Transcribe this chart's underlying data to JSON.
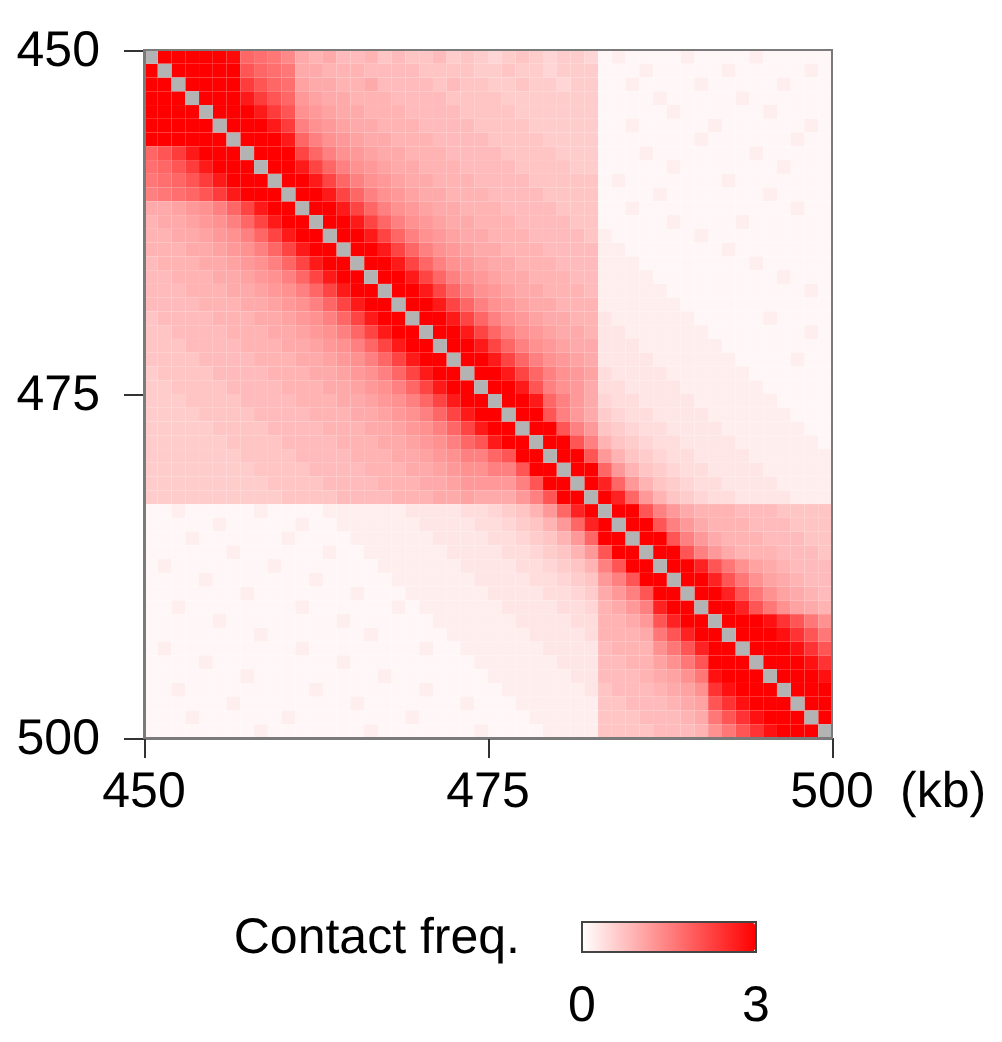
{
  "chart_data": {
    "type": "heatmap",
    "xlabel": "(kb)",
    "clabel": "Contact freq.",
    "x": [
      450.5,
      451.5,
      452.5,
      453.5,
      454.5,
      455.5,
      456.5,
      457.5,
      458.5,
      459.5,
      460.5,
      461.5,
      462.5,
      463.5,
      464.5,
      465.5,
      466.5,
      467.5,
      468.5,
      469.5,
      470.5,
      471.5,
      472.5,
      473.5,
      474.5,
      475.5,
      476.5,
      477.5,
      478.5,
      479.5,
      480.5,
      481.5,
      482.5,
      483.5,
      484.5,
      485.5,
      486.5,
      487.5,
      488.5,
      489.5,
      490.5,
      491.5,
      492.5,
      493.5,
      494.5,
      495.5,
      496.5,
      497.5,
      498.5,
      499.5
    ],
    "xlim": [
      450,
      500
    ],
    "xticks": [
      450,
      475,
      500
    ],
    "ylim": [
      500,
      450
    ],
    "yticks": [
      450,
      475,
      500
    ],
    "clim": [
      0,
      3
    ],
    "cticks": [
      0,
      3
    ],
    "cells": [
      [
        null,
        3,
        3,
        3,
        3,
        3,
        2.9,
        1.8,
        1.7,
        1.6,
        1.4,
        1.0,
        0.9,
        1.0,
        0.8,
        0.8,
        0.9,
        0.7,
        0.8,
        0.7,
        0.7,
        0.8,
        0.6,
        0.7,
        0.6,
        0.5,
        0.6,
        0.7,
        0.6,
        0.5,
        0.6,
        0.6,
        0.5,
        0.1,
        0.2,
        0.1,
        0.1,
        0.1,
        0.1,
        0.2,
        0.1,
        0.1,
        0.1,
        0.1,
        0.2,
        0.1,
        0.1,
        0.1,
        0.1,
        0.1
      ],
      [
        3,
        null,
        3,
        3,
        3,
        3,
        3,
        2.0,
        1.8,
        1.7,
        1.6,
        1.0,
        1.0,
        0.9,
        0.9,
        0.9,
        0.8,
        0.8,
        0.8,
        0.8,
        0.7,
        0.7,
        0.7,
        0.7,
        0.6,
        0.6,
        0.7,
        0.6,
        0.6,
        0.5,
        0.6,
        0.6,
        0.6,
        0.1,
        0.1,
        0.1,
        0.2,
        0.1,
        0.1,
        0.1,
        0.1,
        0.1,
        0.2,
        0.1,
        0.1,
        0.1,
        0.1,
        0.1,
        0.2,
        0.1
      ],
      [
        3,
        3,
        null,
        3,
        3,
        3,
        3,
        2.3,
        2.0,
        1.8,
        1.7,
        1.1,
        1.0,
        1.0,
        0.9,
        0.9,
        1.0,
        0.8,
        0.8,
        0.8,
        0.8,
        0.7,
        0.8,
        0.7,
        0.7,
        0.6,
        0.6,
        0.7,
        0.6,
        0.6,
        0.5,
        0.6,
        0.6,
        0.1,
        0.1,
        0.2,
        0.1,
        0.1,
        0.1,
        0.1,
        0.2,
        0.1,
        0.1,
        0.1,
        0.1,
        0.1,
        0.2,
        0.1,
        0.1,
        0.1
      ],
      [
        3,
        3,
        3,
        null,
        3,
        3,
        3,
        2.7,
        2.3,
        2.0,
        1.8,
        1.2,
        1.1,
        1.0,
        1.0,
        0.9,
        0.9,
        0.9,
        0.8,
        0.8,
        0.8,
        0.8,
        0.7,
        0.7,
        0.7,
        0.7,
        0.6,
        0.6,
        0.6,
        0.6,
        0.6,
        0.6,
        0.6,
        0.1,
        0.1,
        0.1,
        0.1,
        0.2,
        0.1,
        0.1,
        0.1,
        0.1,
        0.1,
        0.2,
        0.1,
        0.1,
        0.1,
        0.1,
        0.1,
        0.1
      ],
      [
        3,
        3,
        3,
        3,
        null,
        3,
        3,
        3,
        2.7,
        2.3,
        2.0,
        1.3,
        1.2,
        1.1,
        1.0,
        1.0,
        0.9,
        0.9,
        0.9,
        0.8,
        0.8,
        0.8,
        0.8,
        0.7,
        0.7,
        0.7,
        0.7,
        0.6,
        0.6,
        0.6,
        0.6,
        0.6,
        0.6,
        0.1,
        0.1,
        0.1,
        0.1,
        0.1,
        0.2,
        0.1,
        0.1,
        0.1,
        0.1,
        0.1,
        0.1,
        0.2,
        0.1,
        0.1,
        0.1,
        0.1
      ],
      [
        3,
        3,
        3,
        3,
        3,
        null,
        3,
        3,
        3,
        2.7,
        2.3,
        1.5,
        1.3,
        1.2,
        1.1,
        1.0,
        1.0,
        0.9,
        0.9,
        0.9,
        0.8,
        0.8,
        0.8,
        0.8,
        0.7,
        0.7,
        0.7,
        0.7,
        0.6,
        0.6,
        0.6,
        0.6,
        0.6,
        0.1,
        0.1,
        0.2,
        0.1,
        0.1,
        0.1,
        0.1,
        0.1,
        0.2,
        0.1,
        0.1,
        0.1,
        0.1,
        0.1,
        0.1,
        0.2,
        0.1
      ],
      [
        3,
        3,
        3,
        3,
        3,
        3,
        null,
        3,
        3,
        3,
        2.7,
        1.8,
        1.5,
        1.3,
        1.2,
        1.1,
        1.0,
        1.0,
        0.9,
        0.9,
        0.9,
        0.8,
        0.8,
        0.8,
        0.8,
        0.7,
        0.7,
        0.7,
        0.7,
        0.6,
        0.6,
        0.6,
        0.6,
        0.1,
        0.1,
        0.1,
        0.1,
        0.1,
        0.1,
        0.1,
        0.2,
        0.1,
        0.1,
        0.1,
        0.1,
        0.1,
        0.1,
        0.2,
        0.1,
        0.1
      ],
      [
        1.8,
        2.0,
        2.3,
        2.7,
        3,
        3,
        3,
        null,
        3,
        3,
        3,
        2.2,
        1.8,
        1.5,
        1.3,
        1.2,
        1.1,
        1.0,
        1.0,
        0.9,
        0.9,
        0.9,
        0.8,
        0.8,
        0.8,
        0.8,
        0.7,
        0.7,
        0.7,
        0.7,
        0.6,
        0.6,
        0.6,
        0.1,
        0.1,
        0.1,
        0.2,
        0.1,
        0.1,
        0.1,
        0.1,
        0.1,
        0.1,
        0.1,
        0.2,
        0.1,
        0.1,
        0.1,
        0.1,
        0.1
      ],
      [
        1.7,
        1.8,
        2.0,
        2.3,
        2.7,
        3,
        3,
        3,
        null,
        3,
        3,
        2.7,
        2.2,
        1.8,
        1.5,
        1.3,
        1.2,
        1.1,
        1.0,
        1.0,
        0.9,
        0.9,
        0.9,
        0.8,
        0.8,
        0.8,
        0.8,
        0.7,
        0.7,
        0.7,
        0.7,
        0.6,
        0.6,
        0.1,
        0.1,
        0.1,
        0.1,
        0.1,
        0.2,
        0.1,
        0.1,
        0.1,
        0.1,
        0.1,
        0.1,
        0.1,
        0.2,
        0.1,
        0.1,
        0.1
      ],
      [
        1.6,
        1.7,
        1.8,
        2.0,
        2.3,
        2.7,
        3,
        3,
        3,
        null,
        3,
        3,
        2.7,
        2.2,
        1.8,
        1.5,
        1.3,
        1.2,
        1.1,
        1.0,
        1.0,
        0.9,
        0.9,
        0.9,
        0.8,
        0.8,
        0.8,
        0.8,
        0.7,
        0.7,
        0.7,
        0.7,
        0.7,
        0.1,
        0.2,
        0.1,
        0.1,
        0.1,
        0.1,
        0.1,
        0.1,
        0.1,
        0.2,
        0.1,
        0.1,
        0.1,
        0.1,
        0.1,
        0.1,
        0.1
      ],
      [
        1.5,
        1.6,
        1.7,
        1.8,
        2.0,
        2.3,
        2.7,
        3,
        3,
        3,
        null,
        3,
        3,
        2.7,
        2.2,
        1.8,
        1.5,
        1.3,
        1.2,
        1.1,
        1.0,
        1.0,
        0.9,
        0.9,
        0.9,
        0.8,
        0.8,
        0.8,
        0.8,
        0.7,
        0.7,
        0.7,
        0.7,
        0.1,
        0.1,
        0.1,
        0.1,
        0.2,
        0.1,
        0.1,
        0.1,
        0.1,
        0.1,
        0.1,
        0.1,
        0.2,
        0.1,
        0.1,
        0.1,
        0.1
      ],
      [
        1.0,
        1.0,
        1.1,
        1.2,
        1.3,
        1.5,
        1.8,
        2.2,
        2.7,
        3,
        3,
        null,
        3,
        3,
        2.7,
        2.2,
        1.8,
        1.5,
        1.3,
        1.2,
        1.1,
        1.0,
        1.0,
        0.9,
        0.9,
        0.9,
        0.8,
        0.8,
        0.8,
        0.8,
        0.7,
        0.7,
        0.7,
        0.1,
        0.1,
        0.2,
        0.1,
        0.1,
        0.1,
        0.1,
        0.1,
        0.1,
        0.1,
        0.1,
        0.1,
        0.1,
        0.1,
        0.2,
        0.1,
        0.1
      ],
      [
        0.9,
        1.0,
        1.0,
        1.1,
        1.2,
        1.3,
        1.5,
        1.8,
        2.2,
        2.7,
        3,
        3,
        null,
        3,
        3,
        2.7,
        2.2,
        1.8,
        1.5,
        1.3,
        1.2,
        1.1,
        1.0,
        1.0,
        0.9,
        0.9,
        0.9,
        0.8,
        0.8,
        0.8,
        0.8,
        0.7,
        0.7,
        0.1,
        0.1,
        0.1,
        0.1,
        0.1,
        0.2,
        0.1,
        0.1,
        0.1,
        0.1,
        0.2,
        0.1,
        0.1,
        0.1,
        0.1,
        0.1,
        0.1
      ],
      [
        0.9,
        0.9,
        1.0,
        1.0,
        1.1,
        1.2,
        1.3,
        1.5,
        1.8,
        2.2,
        2.7,
        3,
        3,
        null,
        3,
        3,
        2.7,
        2.2,
        1.8,
        1.5,
        1.3,
        1.2,
        1.1,
        1.0,
        1.0,
        0.9,
        0.9,
        0.9,
        0.8,
        0.8,
        0.8,
        0.8,
        0.7,
        0.2,
        0.1,
        0.1,
        0.1,
        0.1,
        0.1,
        0.1,
        0.2,
        0.1,
        0.1,
        0.1,
        0.1,
        0.1,
        0.1,
        0.1,
        0.1,
        0.1
      ],
      [
        0.9,
        0.9,
        0.9,
        1.0,
        1.0,
        1.1,
        1.2,
        1.3,
        1.5,
        1.8,
        2.2,
        2.7,
        3,
        3,
        null,
        3,
        3,
        2.7,
        2.2,
        1.8,
        1.5,
        1.3,
        1.2,
        1.1,
        1.0,
        1.0,
        0.9,
        0.9,
        0.9,
        0.8,
        0.8,
        0.8,
        0.8,
        0.2,
        0.2,
        0.1,
        0.1,
        0.1,
        0.1,
        0.1,
        0.1,
        0.1,
        0.2,
        0.1,
        0.1,
        0.1,
        0.1,
        0.1,
        0.1,
        0.1
      ],
      [
        0.8,
        0.9,
        0.9,
        0.9,
        1.0,
        1.0,
        1.1,
        1.2,
        1.3,
        1.5,
        1.8,
        2.2,
        2.7,
        3,
        3,
        null,
        3,
        3,
        2.7,
        2.2,
        1.8,
        1.5,
        1.3,
        1.2,
        1.1,
        1.0,
        1.0,
        0.9,
        0.9,
        0.9,
        0.8,
        0.8,
        0.8,
        0.2,
        0.2,
        0.2,
        0.1,
        0.1,
        0.1,
        0.1,
        0.1,
        0.1,
        0.1,
        0.1,
        0.2,
        0.1,
        0.1,
        0.1,
        0.1,
        0.1
      ],
      [
        0.8,
        0.8,
        0.9,
        0.9,
        0.9,
        1.0,
        1.0,
        1.1,
        1.2,
        1.3,
        1.5,
        1.8,
        2.2,
        2.7,
        3,
        3,
        null,
        3,
        3,
        2.7,
        2.2,
        1.8,
        1.5,
        1.3,
        1.2,
        1.1,
        1.0,
        1.0,
        0.9,
        0.9,
        0.9,
        0.8,
        0.8,
        0.2,
        0.2,
        0.2,
        0.2,
        0.1,
        0.1,
        0.1,
        0.1,
        0.1,
        0.1,
        0.1,
        0.1,
        0.1,
        0.2,
        0.1,
        0.1,
        0.1
      ],
      [
        0.8,
        0.8,
        0.8,
        0.9,
        0.9,
        0.9,
        1.0,
        1.0,
        1.1,
        1.2,
        1.3,
        1.5,
        1.8,
        2.2,
        2.7,
        3,
        3,
        null,
        3,
        3,
        2.7,
        2.2,
        1.8,
        1.5,
        1.3,
        1.2,
        1.1,
        1.0,
        1.0,
        0.9,
        0.9,
        0.9,
        0.8,
        0.2,
        0.2,
        0.2,
        0.2,
        0.2,
        0.1,
        0.1,
        0.1,
        0.1,
        0.1,
        0.1,
        0.1,
        0.1,
        0.1,
        0.1,
        0.2,
        0.1
      ],
      [
        0.8,
        0.8,
        0.8,
        0.8,
        0.9,
        0.9,
        0.9,
        1.0,
        1.0,
        1.1,
        1.2,
        1.3,
        1.5,
        1.8,
        2.2,
        2.7,
        3,
        3,
        null,
        3,
        3,
        2.7,
        2.2,
        1.8,
        1.5,
        1.3,
        1.2,
        1.1,
        1.0,
        1.0,
        0.9,
        0.9,
        0.9,
        0.2,
        0.2,
        0.2,
        0.2,
        0.2,
        0.2,
        0.1,
        0.1,
        0.1,
        0.1,
        0.1,
        0.1,
        0.1,
        0.1,
        0.1,
        0.1,
        0.1
      ],
      [
        0.7,
        0.8,
        0.8,
        0.8,
        0.8,
        0.9,
        0.9,
        0.9,
        1.0,
        1.0,
        1.1,
        1.2,
        1.3,
        1.5,
        1.8,
        2.2,
        2.7,
        3,
        3,
        null,
        3,
        3,
        2.7,
        2.2,
        1.8,
        1.5,
        1.3,
        1.2,
        1.1,
        1.0,
        1.0,
        0.9,
        0.9,
        0.3,
        0.2,
        0.2,
        0.2,
        0.2,
        0.2,
        0.2,
        0.1,
        0.1,
        0.1,
        0.1,
        0.1,
        0.2,
        0.1,
        0.1,
        0.1,
        0.1
      ],
      [
        0.7,
        0.7,
        0.8,
        0.8,
        0.8,
        0.8,
        0.9,
        0.9,
        0.9,
        1.0,
        1.0,
        1.1,
        1.2,
        1.3,
        1.5,
        1.8,
        2.2,
        2.7,
        3,
        3,
        null,
        3,
        3,
        2.7,
        2.2,
        1.8,
        1.5,
        1.3,
        1.2,
        1.1,
        1.0,
        1.0,
        0.9,
        0.3,
        0.3,
        0.2,
        0.2,
        0.2,
        0.2,
        0.2,
        0.2,
        0.1,
        0.1,
        0.1,
        0.1,
        0.1,
        0.1,
        0.1,
        0.2,
        0.1
      ],
      [
        0.7,
        0.7,
        0.7,
        0.8,
        0.8,
        0.8,
        0.8,
        0.9,
        0.9,
        0.9,
        1.0,
        1.0,
        1.1,
        1.2,
        1.3,
        1.5,
        1.8,
        2.2,
        2.7,
        3,
        3,
        null,
        3,
        3,
        2.7,
        2.2,
        1.8,
        1.5,
        1.3,
        1.2,
        1.1,
        1.0,
        1.0,
        0.3,
        0.3,
        0.3,
        0.2,
        0.2,
        0.2,
        0.2,
        0.2,
        0.2,
        0.1,
        0.1,
        0.1,
        0.1,
        0.1,
        0.1,
        0.1,
        0.1
      ],
      [
        0.7,
        0.7,
        0.7,
        0.7,
        0.8,
        0.8,
        0.8,
        0.8,
        0.9,
        0.9,
        0.9,
        1.0,
        1.0,
        1.1,
        1.2,
        1.3,
        1.5,
        1.8,
        2.2,
        2.7,
        3,
        3,
        null,
        3,
        3,
        2.7,
        2.2,
        1.8,
        1.5,
        1.3,
        1.2,
        1.1,
        1.0,
        0.3,
        0.3,
        0.3,
        0.3,
        0.2,
        0.2,
        0.2,
        0.2,
        0.2,
        0.2,
        0.1,
        0.1,
        0.1,
        0.1,
        0.2,
        0.1,
        0.1
      ],
      [
        0.6,
        0.7,
        0.7,
        0.7,
        0.7,
        0.8,
        0.8,
        0.8,
        0.8,
        0.9,
        0.9,
        0.9,
        1.0,
        1.0,
        1.1,
        1.2,
        1.3,
        1.5,
        1.8,
        2.2,
        2.7,
        3,
        3,
        null,
        3,
        3,
        2.7,
        2.2,
        1.8,
        1.5,
        1.3,
        1.2,
        1.1,
        0.4,
        0.3,
        0.3,
        0.3,
        0.3,
        0.2,
        0.2,
        0.2,
        0.2,
        0.2,
        0.2,
        0.1,
        0.1,
        0.1,
        0.1,
        0.1,
        0.1
      ],
      [
        0.6,
        0.6,
        0.7,
        0.7,
        0.7,
        0.7,
        0.8,
        0.8,
        0.8,
        0.8,
        0.9,
        0.9,
        0.9,
        1.0,
        1.0,
        1.1,
        1.2,
        1.3,
        1.5,
        1.8,
        2.2,
        2.7,
        3,
        3,
        null,
        3,
        3,
        2.7,
        2.0,
        1.5,
        1.3,
        1.2,
        1.0,
        0.4,
        0.4,
        0.3,
        0.3,
        0.3,
        0.3,
        0.2,
        0.2,
        0.2,
        0.2,
        0.2,
        0.2,
        0.1,
        0.1,
        0.1,
        0.1,
        0.1
      ],
      [
        0.6,
        0.6,
        0.6,
        0.7,
        0.7,
        0.7,
        0.7,
        0.8,
        0.8,
        0.8,
        0.8,
        0.9,
        0.9,
        0.9,
        1.0,
        1.0,
        1.1,
        1.2,
        1.3,
        1.5,
        1.8,
        2.2,
        2.7,
        3,
        3,
        null,
        3,
        3,
        2.7,
        1.8,
        1.5,
        1.2,
        1.0,
        0.5,
        0.4,
        0.4,
        0.3,
        0.3,
        0.3,
        0.3,
        0.2,
        0.2,
        0.2,
        0.2,
        0.2,
        0.2,
        0.1,
        0.1,
        0.1,
        0.1
      ],
      [
        0.6,
        0.6,
        0.6,
        0.6,
        0.7,
        0.7,
        0.7,
        0.7,
        0.8,
        0.8,
        0.8,
        0.8,
        0.9,
        0.9,
        0.9,
        1.0,
        1.0,
        1.1,
        1.2,
        1.3,
        1.5,
        1.8,
        2.2,
        2.7,
        3,
        3,
        null,
        3,
        3,
        2.0,
        1.5,
        1.2,
        1.0,
        0.6,
        0.5,
        0.4,
        0.4,
        0.3,
        0.3,
        0.3,
        0.3,
        0.2,
        0.2,
        0.2,
        0.2,
        0.2,
        0.2,
        0.1,
        0.1,
        0.1
      ],
      [
        0.6,
        0.6,
        0.6,
        0.6,
        0.6,
        0.7,
        0.7,
        0.7,
        0.7,
        0.8,
        0.8,
        0.8,
        0.8,
        0.9,
        0.9,
        0.9,
        1.0,
        1.0,
        1.1,
        1.2,
        1.3,
        1.5,
        1.8,
        2.2,
        2.7,
        3,
        3,
        null,
        3,
        3,
        2.0,
        1.5,
        1.2,
        0.7,
        0.6,
        0.5,
        0.4,
        0.4,
        0.3,
        0.3,
        0.3,
        0.3,
        0.2,
        0.2,
        0.2,
        0.2,
        0.2,
        0.2,
        0.1,
        0.1
      ],
      [
        0.6,
        0.6,
        0.6,
        0.6,
        0.6,
        0.6,
        0.7,
        0.7,
        0.7,
        0.7,
        0.8,
        0.8,
        0.8,
        0.8,
        0.9,
        0.9,
        0.9,
        1.0,
        1.0,
        1.1,
        1.2,
        1.3,
        1.5,
        1.8,
        2.0,
        2.7,
        3,
        3,
        null,
        3,
        3,
        2.0,
        1.5,
        0.9,
        0.7,
        0.6,
        0.5,
        0.4,
        0.4,
        0.3,
        0.3,
        0.3,
        0.3,
        0.2,
        0.2,
        0.2,
        0.2,
        0.2,
        0.2,
        0.1
      ],
      [
        0.6,
        0.6,
        0.6,
        0.6,
        0.6,
        0.6,
        0.6,
        0.7,
        0.7,
        0.7,
        0.7,
        0.8,
        0.8,
        0.8,
        0.8,
        0.9,
        0.9,
        0.9,
        1.0,
        1.0,
        1.1,
        1.2,
        1.3,
        1.5,
        1.5,
        1.8,
        2.0,
        3,
        3,
        null,
        3,
        3,
        2.0,
        1.2,
        0.9,
        0.7,
        0.6,
        0.5,
        0.4,
        0.4,
        0.3,
        0.3,
        0.3,
        0.3,
        0.2,
        0.2,
        0.2,
        0.2,
        0.2,
        0.2
      ],
      [
        0.6,
        0.6,
        0.6,
        0.6,
        0.6,
        0.6,
        0.6,
        0.6,
        0.7,
        0.7,
        0.7,
        0.7,
        0.8,
        0.8,
        0.8,
        0.8,
        0.9,
        0.9,
        0.9,
        1.0,
        1.0,
        1.1,
        1.2,
        1.3,
        1.3,
        1.5,
        1.5,
        2.0,
        3,
        3,
        null,
        3,
        3,
        1.8,
        1.2,
        0.9,
        0.7,
        0.6,
        0.5,
        0.4,
        0.4,
        0.3,
        0.3,
        0.3,
        0.3,
        0.2,
        0.2,
        0.2,
        0.2,
        0.2
      ],
      [
        0.6,
        0.6,
        0.6,
        0.6,
        0.6,
        0.6,
        0.6,
        0.6,
        0.6,
        0.7,
        0.7,
        0.7,
        0.7,
        0.8,
        0.8,
        0.8,
        0.8,
        0.9,
        0.9,
        0.9,
        1.0,
        1.0,
        1.1,
        1.2,
        1.2,
        1.2,
        1.2,
        1.5,
        2.0,
        3,
        3,
        null,
        3,
        2.6,
        1.8,
        1.2,
        0.9,
        0.7,
        0.6,
        0.5,
        0.4,
        0.4,
        0.3,
        0.3,
        0.3,
        0.3,
        0.2,
        0.2,
        0.2,
        0.2
      ],
      [
        0.6,
        0.6,
        0.6,
        0.6,
        0.6,
        0.6,
        0.6,
        0.6,
        0.6,
        0.6,
        0.7,
        0.7,
        0.7,
        0.7,
        0.8,
        0.8,
        0.8,
        0.8,
        0.9,
        0.9,
        0.9,
        1.0,
        1.0,
        1.1,
        1.0,
        1.0,
        1.0,
        1.2,
        1.5,
        2.0,
        3,
        3,
        null,
        3,
        2.6,
        1.8,
        1.2,
        0.9,
        0.7,
        0.6,
        0.5,
        0.4,
        0.4,
        0.3,
        0.3,
        0.3,
        0.3,
        0.2,
        0.2,
        0.2
      ],
      [
        0.1,
        0.1,
        0.2,
        0.1,
        0.1,
        0.1,
        0.1,
        0.1,
        0.2,
        0.1,
        0.1,
        0.1,
        0.1,
        0.2,
        0.2,
        0.2,
        0.2,
        0.2,
        0.2,
        0.3,
        0.3,
        0.3,
        0.3,
        0.4,
        0.4,
        0.5,
        0.6,
        0.7,
        0.9,
        1.2,
        1.8,
        2.6,
        3,
        null,
        3,
        3,
        2.0,
        1.5,
        1.2,
        1.0,
        0.9,
        0.9,
        0.9,
        0.8,
        0.8,
        0.8,
        0.7,
        0.7,
        0.7,
        0.7
      ],
      [
        0.1,
        0.1,
        0.1,
        0.1,
        0.1,
        0.2,
        0.1,
        0.1,
        0.1,
        0.1,
        0.1,
        0.2,
        0.1,
        0.1,
        0.2,
        0.2,
        0.2,
        0.2,
        0.2,
        0.2,
        0.3,
        0.3,
        0.3,
        0.3,
        0.4,
        0.4,
        0.5,
        0.6,
        0.7,
        0.9,
        1.2,
        1.8,
        2.6,
        3,
        null,
        3,
        3,
        2.0,
        1.5,
        1.2,
        1.0,
        0.9,
        0.9,
        0.9,
        0.8,
        0.8,
        0.8,
        0.7,
        0.7,
        0.7
      ],
      [
        0.1,
        0.1,
        0.1,
        0.2,
        0.1,
        0.1,
        0.1,
        0.1,
        0.1,
        0.1,
        0.2,
        0.1,
        0.1,
        0.1,
        0.1,
        0.2,
        0.2,
        0.2,
        0.2,
        0.2,
        0.2,
        0.3,
        0.3,
        0.3,
        0.3,
        0.4,
        0.4,
        0.5,
        0.6,
        0.7,
        0.9,
        1.2,
        1.8,
        3,
        3,
        null,
        3,
        3,
        2.0,
        1.5,
        1.2,
        1.0,
        0.9,
        0.9,
        0.9,
        0.8,
        0.8,
        0.8,
        0.7,
        0.7
      ],
      [
        0.1,
        0.1,
        0.1,
        0.1,
        0.1,
        0.1,
        0.2,
        0.1,
        0.1,
        0.1,
        0.1,
        0.1,
        0.1,
        0.2,
        0.1,
        0.1,
        0.2,
        0.2,
        0.2,
        0.2,
        0.2,
        0.2,
        0.3,
        0.3,
        0.3,
        0.3,
        0.4,
        0.4,
        0.5,
        0.6,
        0.7,
        0.9,
        1.2,
        2.0,
        3,
        3,
        null,
        3,
        3,
        2.0,
        1.5,
        1.2,
        1.0,
        0.9,
        0.9,
        0.9,
        0.8,
        0.8,
        0.8,
        0.7
      ],
      [
        0.1,
        0.2,
        0.1,
        0.1,
        0.1,
        0.1,
        0.1,
        0.1,
        0.1,
        0.2,
        0.1,
        0.1,
        0.1,
        0.1,
        0.1,
        0.1,
        0.1,
        0.2,
        0.2,
        0.2,
        0.2,
        0.2,
        0.2,
        0.3,
        0.3,
        0.3,
        0.3,
        0.4,
        0.4,
        0.5,
        0.6,
        0.7,
        0.9,
        1.5,
        2.0,
        3,
        3,
        null,
        3,
        3,
        2.6,
        2.0,
        1.6,
        1.3,
        1.1,
        1.0,
        0.9,
        0.8,
        0.8,
        0.8
      ],
      [
        0.1,
        0.1,
        0.1,
        0.1,
        0.2,
        0.1,
        0.1,
        0.1,
        0.1,
        0.1,
        0.1,
        0.1,
        0.2,
        0.1,
        0.1,
        0.1,
        0.1,
        0.1,
        0.2,
        0.2,
        0.2,
        0.2,
        0.2,
        0.2,
        0.3,
        0.3,
        0.3,
        0.3,
        0.4,
        0.4,
        0.5,
        0.6,
        0.7,
        1.2,
        1.5,
        2.0,
        3,
        3,
        null,
        3,
        3,
        2.6,
        2.0,
        1.6,
        1.3,
        1.1,
        1.0,
        0.9,
        0.8,
        0.8
      ],
      [
        0.1,
        0.1,
        0.1,
        0.1,
        0.1,
        0.1,
        0.1,
        0.2,
        0.1,
        0.1,
        0.1,
        0.1,
        0.1,
        0.1,
        0.1,
        0.2,
        0.1,
        0.1,
        0.1,
        0.2,
        0.2,
        0.2,
        0.2,
        0.2,
        0.2,
        0.3,
        0.3,
        0.3,
        0.3,
        0.4,
        0.4,
        0.5,
        0.6,
        1.0,
        1.2,
        1.5,
        2.0,
        3,
        3,
        null,
        3,
        3,
        2.6,
        2.0,
        1.6,
        1.3,
        1.1,
        1.0,
        0.9,
        0.8
      ],
      [
        0.1,
        0.1,
        0.2,
        0.1,
        0.1,
        0.1,
        0.1,
        0.1,
        0.1,
        0.1,
        0.1,
        0.2,
        0.1,
        0.1,
        0.1,
        0.1,
        0.1,
        0.1,
        0.2,
        0.1,
        0.2,
        0.2,
        0.2,
        0.2,
        0.2,
        0.2,
        0.3,
        0.3,
        0.3,
        0.3,
        0.4,
        0.4,
        0.5,
        0.9,
        1.0,
        1.2,
        1.5,
        2.6,
        3,
        3,
        null,
        3,
        3,
        2.6,
        2.0,
        1.6,
        1.3,
        1.1,
        1.0,
        0.9
      ],
      [
        0.1,
        0.1,
        0.1,
        0.1,
        0.1,
        0.2,
        0.1,
        0.1,
        0.1,
        0.1,
        0.1,
        0.1,
        0.1,
        0.1,
        0.2,
        0.1,
        0.1,
        0.1,
        0.1,
        0.1,
        0.1,
        0.2,
        0.2,
        0.2,
        0.2,
        0.2,
        0.2,
        0.3,
        0.3,
        0.3,
        0.3,
        0.4,
        0.4,
        0.9,
        0.9,
        1.0,
        1.2,
        2.0,
        2.6,
        3,
        3,
        null,
        3,
        3,
        3,
        2.8,
        2.4,
        2.0,
        1.6,
        1.3
      ],
      [
        0.1,
        0.1,
        0.1,
        0.1,
        0.1,
        0.1,
        0.1,
        0.1,
        0.2,
        0.1,
        0.1,
        0.1,
        0.1,
        0.1,
        0.1,
        0.1,
        0.2,
        0.1,
        0.1,
        0.1,
        0.1,
        0.1,
        0.2,
        0.2,
        0.2,
        0.2,
        0.2,
        0.2,
        0.3,
        0.3,
        0.3,
        0.3,
        0.4,
        0.9,
        0.9,
        0.9,
        1.0,
        1.6,
        2.0,
        2.6,
        3,
        3,
        null,
        3,
        3,
        3,
        2.8,
        2.4,
        2.0,
        1.6
      ],
      [
        0.1,
        0.2,
        0.1,
        0.1,
        0.1,
        0.1,
        0.1,
        0.1,
        0.1,
        0.1,
        0.1,
        0.2,
        0.1,
        0.1,
        0.1,
        0.1,
        0.1,
        0.1,
        0.1,
        0.1,
        0.2,
        0.1,
        0.1,
        0.2,
        0.2,
        0.2,
        0.2,
        0.2,
        0.2,
        0.3,
        0.3,
        0.3,
        0.3,
        0.8,
        0.9,
        0.9,
        0.9,
        1.3,
        1.6,
        2.0,
        2.6,
        3,
        3,
        null,
        3,
        3,
        3,
        2.8,
        2.4,
        2.0
      ],
      [
        0.1,
        0.1,
        0.1,
        0.1,
        0.2,
        0.1,
        0.1,
        0.1,
        0.1,
        0.1,
        0.1,
        0.1,
        0.1,
        0.1,
        0.2,
        0.1,
        0.1,
        0.1,
        0.1,
        0.1,
        0.1,
        0.1,
        0.1,
        0.1,
        0.2,
        0.2,
        0.2,
        0.2,
        0.2,
        0.2,
        0.3,
        0.3,
        0.3,
        0.8,
        0.8,
        0.9,
        0.9,
        1.1,
        1.3,
        1.6,
        2.0,
        3,
        3,
        3,
        null,
        3,
        3,
        3,
        2.8,
        2.4
      ],
      [
        0.1,
        0.1,
        0.1,
        0.1,
        0.1,
        0.1,
        0.1,
        0.2,
        0.1,
        0.1,
        0.1,
        0.1,
        0.1,
        0.1,
        0.1,
        0.1,
        0.1,
        0.2,
        0.1,
        0.1,
        0.1,
        0.1,
        0.1,
        0.1,
        0.1,
        0.2,
        0.2,
        0.2,
        0.2,
        0.2,
        0.2,
        0.3,
        0.3,
        0.8,
        0.8,
        0.8,
        0.9,
        1.0,
        1.1,
        1.3,
        1.6,
        2.8,
        3,
        3,
        3,
        null,
        3,
        3,
        3,
        2.8
      ],
      [
        0.1,
        0.1,
        0.2,
        0.1,
        0.1,
        0.1,
        0.1,
        0.1,
        0.1,
        0.1,
        0.1,
        0.1,
        0.2,
        0.1,
        0.1,
        0.1,
        0.1,
        0.1,
        0.1,
        0.1,
        0.2,
        0.1,
        0.1,
        0.1,
        0.1,
        0.1,
        0.2,
        0.2,
        0.2,
        0.2,
        0.2,
        0.2,
        0.3,
        0.7,
        0.8,
        0.8,
        0.8,
        0.9,
        1.0,
        1.1,
        1.3,
        2.4,
        2.8,
        3,
        3,
        3,
        null,
        3,
        3,
        3
      ],
      [
        0.1,
        0.1,
        0.1,
        0.1,
        0.1,
        0.1,
        0.2,
        0.1,
        0.1,
        0.1,
        0.1,
        0.1,
        0.1,
        0.1,
        0.1,
        0.2,
        0.1,
        0.1,
        0.1,
        0.1,
        0.1,
        0.1,
        0.1,
        0.2,
        0.1,
        0.1,
        0.1,
        0.2,
        0.2,
        0.2,
        0.2,
        0.2,
        0.2,
        0.7,
        0.7,
        0.8,
        0.8,
        0.8,
        0.9,
        1.0,
        1.1,
        2.0,
        2.4,
        2.8,
        3,
        3,
        3,
        null,
        3,
        3
      ],
      [
        0.1,
        0.1,
        0.1,
        0.2,
        0.1,
        0.1,
        0.1,
        0.1,
        0.1,
        0.1,
        0.2,
        0.1,
        0.1,
        0.1,
        0.1,
        0.1,
        0.1,
        0.1,
        0.1,
        0.2,
        0.1,
        0.1,
        0.1,
        0.1,
        0.1,
        0.1,
        0.1,
        0.1,
        0.2,
        0.2,
        0.2,
        0.2,
        0.2,
        0.7,
        0.7,
        0.7,
        0.8,
        0.8,
        0.8,
        0.9,
        1.0,
        1.6,
        2.0,
        2.4,
        2.8,
        3,
        3,
        3,
        null,
        3
      ],
      [
        0.1,
        0.1,
        0.1,
        0.1,
        0.1,
        0.1,
        0.1,
        0.1,
        0.2,
        0.1,
        0.1,
        0.1,
        0.1,
        0.1,
        0.1,
        0.1,
        0.2,
        0.1,
        0.1,
        0.1,
        0.1,
        0.1,
        0.1,
        0.1,
        0.2,
        0.1,
        0.1,
        0.1,
        0.1,
        0.2,
        0.2,
        0.2,
        0.2,
        0.7,
        0.7,
        0.7,
        0.7,
        0.8,
        0.8,
        0.8,
        0.9,
        1.3,
        1.6,
        2.0,
        2.4,
        2.8,
        3,
        3,
        3,
        null
      ]
    ]
  }
}
